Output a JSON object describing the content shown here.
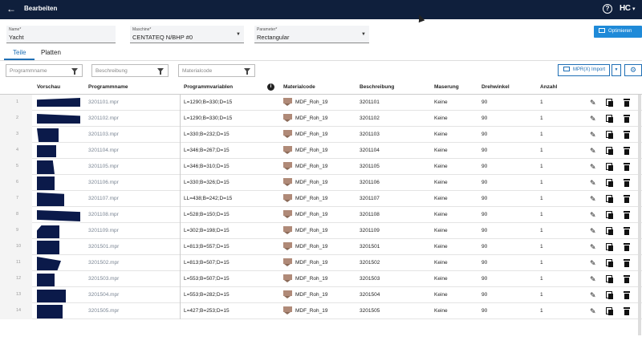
{
  "topbar": {
    "title": "Bearbeiten",
    "back_icon": "←",
    "help_icon": "?",
    "logo": "HC",
    "logo_caret": "▾"
  },
  "fields": {
    "name": {
      "label": "Name*",
      "value": "Yacht"
    },
    "machine": {
      "label": "Maschine*",
      "value": "CENTATEQ N/BHP #0"
    },
    "parameter": {
      "label": "Parameter*",
      "value": "Rectangular"
    }
  },
  "optimize_button": "Optimieren",
  "tabs": [
    "Teile",
    "Platten"
  ],
  "filters": {
    "programmname": "Programmname",
    "beschreibung": "Beschreibung",
    "materialcode": "Materialcode"
  },
  "import_button": "MPR(X) Import",
  "columns": {
    "vorschau": "Vorschau",
    "programmname": "Programmname",
    "programmvariablen": "Programmvariablen",
    "materialcode": "Materialcode",
    "beschreibung": "Beschreibung",
    "maserung": "Maserung",
    "drehwinkel": "Drehwinkel",
    "anzahl": "Anzahl"
  },
  "rows": [
    {
      "num": "1",
      "prog": "3201101.mpr",
      "vars": "L=1290;B=330;D=15",
      "mat": "MDF_Roh_19",
      "desc": "3201101",
      "maser": "Keine",
      "dreh": "90",
      "anz": "1"
    },
    {
      "num": "2",
      "prog": "3201102.mpr",
      "vars": "L=1290;B=330;D=15",
      "mat": "MDF_Roh_19",
      "desc": "3201102",
      "maser": "Keine",
      "dreh": "90",
      "anz": "1"
    },
    {
      "num": "3",
      "prog": "3201103.mpr",
      "vars": "L=330;B=232;D=15",
      "mat": "MDF_Roh_19",
      "desc": "3201103",
      "maser": "Keine",
      "dreh": "90",
      "anz": "1"
    },
    {
      "num": "4",
      "prog": "3201104.mpr",
      "vars": "L=346;B=267;D=15",
      "mat": "MDF_Roh_19",
      "desc": "3201104",
      "maser": "Keine",
      "dreh": "90",
      "anz": "1"
    },
    {
      "num": "5",
      "prog": "3201105.mpr",
      "vars": "L=346;B=310;D=15",
      "mat": "MDF_Roh_19",
      "desc": "3201105",
      "maser": "Keine",
      "dreh": "90",
      "anz": "1"
    },
    {
      "num": "6",
      "prog": "3201106.mpr",
      "vars": "L=330;B=326;D=15",
      "mat": "MDF_Roh_19",
      "desc": "3201106",
      "maser": "Keine",
      "dreh": "90",
      "anz": "1"
    },
    {
      "num": "7",
      "prog": "3201107.mpr",
      "vars": "LL=438;B=242;D=15",
      "mat": "MDF_Roh_19",
      "desc": "3201107",
      "maser": "Keine",
      "dreh": "90",
      "anz": "1"
    },
    {
      "num": "8",
      "prog": "3201108.mpr",
      "vars": "L=528;B=150;D=15",
      "mat": "MDF_Roh_19",
      "desc": "3201108",
      "maser": "Keine",
      "dreh": "90",
      "anz": "1"
    },
    {
      "num": "9",
      "prog": "3201109.mpr",
      "vars": "L=302;B=198;D=15",
      "mat": "MDF_Roh_19",
      "desc": "3201109",
      "maser": "Keine",
      "dreh": "90",
      "anz": "1"
    },
    {
      "num": "10",
      "prog": "3201501.mpr",
      "vars": "L=813;B=557;D=15",
      "mat": "MDF_Roh_19",
      "desc": "3201501",
      "maser": "Keine",
      "dreh": "90",
      "anz": "1"
    },
    {
      "num": "11",
      "prog": "3201502.mpr",
      "vars": "L=813;B=507;D=15",
      "mat": "MDF_Roh_19",
      "desc": "3201502",
      "maser": "Keine",
      "dreh": "90",
      "anz": "1"
    },
    {
      "num": "12",
      "prog": "3201503.mpr",
      "vars": "L=553;B=507;D=15",
      "mat": "MDF_Roh_19",
      "desc": "3201503",
      "maser": "Keine",
      "dreh": "90",
      "anz": "1"
    },
    {
      "num": "13",
      "prog": "3201504.mpr",
      "vars": "L=553;B=282;D=15",
      "mat": "MDF_Roh_19",
      "desc": "3201504",
      "maser": "Keine",
      "dreh": "90",
      "anz": "1"
    },
    {
      "num": "14",
      "prog": "3201505.mpr",
      "vars": "L=427;B=253;D=15",
      "mat": "MDF_Roh_19",
      "desc": "3201505",
      "maser": "Keine",
      "dreh": "90",
      "anz": "1"
    }
  ],
  "icons": {
    "edit": "pencil-icon",
    "copy": "copy-icon",
    "delete": "trash-icon",
    "filter": "funnel-icon",
    "info": "info-icon"
  },
  "colors": {
    "topbar": "#0f1f3c",
    "accent": "#1f6fb5",
    "primary_button": "#1f8ad8",
    "preview": "#0b1a4a"
  }
}
